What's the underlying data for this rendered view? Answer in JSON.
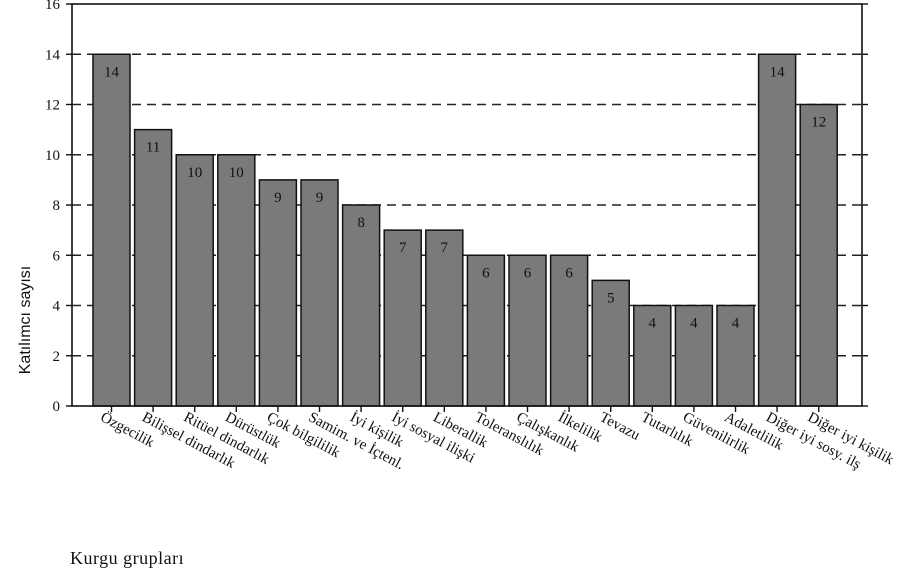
{
  "chart_data": {
    "type": "bar",
    "categories": [
      "Özgecilik",
      "Bilişsel dindarlık",
      "Ritüel dindarlık",
      "Dürüstlük",
      "Çok bilgililik",
      "Samim. ve İçtenl.",
      "İyi kişilik",
      "İyi sosyal ilişki",
      "Liberallik",
      "Toleranslılık",
      "Çalışkanlık",
      "İlkelilik",
      "Tevazu",
      "Tutarlılık",
      "Güvenilirlik",
      "Adaletlilik",
      "Diğer iyi sosy. ilş",
      "Diğer iyi kişilik"
    ],
    "values": [
      14,
      11,
      10,
      10,
      9,
      9,
      8,
      7,
      7,
      6,
      6,
      6,
      5,
      4,
      4,
      4,
      14,
      12
    ],
    "ylabel": "Katılımcı sayısı",
    "xlabel": "Kurgu grupları",
    "ylim": [
      0,
      16
    ],
    "yticks": [
      0,
      2,
      4,
      6,
      8,
      10,
      12,
      14,
      16
    ],
    "grid": "dashed horizontal",
    "bar_color": "#7a7a7a",
    "bar_edge_color": "#111111"
  }
}
